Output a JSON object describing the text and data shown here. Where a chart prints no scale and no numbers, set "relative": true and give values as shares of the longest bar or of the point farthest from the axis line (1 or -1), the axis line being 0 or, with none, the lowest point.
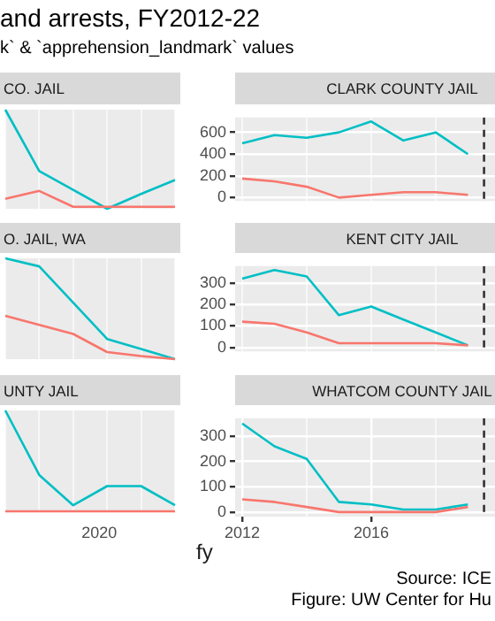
{
  "chart_data": [
    {
      "type": "line",
      "title": "CO. JAIL",
      "annotations": [
        "and arrests, FY2012-22",
        "k` & `apprehension_landmark` values"
      ],
      "relative": true,
      "categories": [
        null,
        null,
        null,
        null,
        null,
        null
      ],
      "grid": true,
      "tick_labels": false,
      "series": [
        {
          "color": "#f8766d",
          "values": [
            0.1,
            0.18,
            0.02,
            0.02,
            0.02,
            0.02
          ]
        },
        {
          "color": "#00bfc4",
          "values": [
            1,
            0.38,
            0.19,
            0,
            0.15,
            0.29
          ]
        }
      ]
    },
    {
      "type": "line",
      "title": "CLARK COUNTY JAIL",
      "xlim": [
        2011.78,
        2019.84
      ],
      "xticks": [
        {
          "value": 2012,
          "label": null
        },
        {
          "value": 2014,
          "label": null
        },
        {
          "value": 2016,
          "label": null
        },
        {
          "value": 2018,
          "label": null
        }
      ],
      "ylim": [
        -31,
        737
      ],
      "yticks": [
        0,
        200,
        400,
        600
      ],
      "grid": true,
      "tick_labels": "y",
      "ref_lines": [
        {
          "axis": "x",
          "value": 2019.5,
          "color": "#333333",
          "line_style": "dashed"
        }
      ],
      "series": [
        {
          "color": "#f8766d",
          "x": [
            2012,
            2013,
            2014,
            2015,
            2016,
            2017,
            2018,
            2019
          ],
          "values": [
            175,
            150,
            100,
            0,
            25,
            50,
            50,
            25
          ]
        },
        {
          "color": "#00bfc4",
          "x": [
            2012,
            2013,
            2014,
            2015,
            2016,
            2017,
            2018,
            2019
          ],
          "values": [
            500,
            575,
            550,
            600,
            700,
            525,
            600,
            400
          ]
        }
      ]
    },
    {
      "type": "line",
      "title": "O. JAIL, WA",
      "relative": true,
      "categories": [
        null,
        null,
        null,
        null,
        null,
        null
      ],
      "grid": true,
      "tick_labels": false,
      "series": [
        {
          "color": "#f8766d",
          "values": [
            0.43,
            0.34,
            0.25,
            0.07,
            0.03,
            0
          ]
        },
        {
          "color": "#00bfc4",
          "values": [
            1,
            0.92,
            0.56,
            0.2,
            0.1,
            0
          ]
        }
      ]
    },
    {
      "type": "line",
      "title": "KENT CITY JAIL",
      "xlim": [
        2011.78,
        2019.84
      ],
      "xticks": [
        {
          "value": 2012,
          "label": null
        },
        {
          "value": 2014,
          "label": null
        },
        {
          "value": 2016,
          "label": null
        },
        {
          "value": 2018,
          "label": null
        }
      ],
      "ylim": [
        -18,
        378
      ],
      "yticks": [
        0,
        100,
        200,
        300
      ],
      "grid": true,
      "tick_labels": "y",
      "ref_lines": [
        {
          "axis": "x",
          "value": 2019.5,
          "color": "#333333",
          "line_style": "dashed"
        }
      ],
      "series": [
        {
          "color": "#f8766d",
          "x": [
            2012,
            2013,
            2014,
            2015,
            2016,
            2017,
            2018,
            2019
          ],
          "values": [
            120,
            110,
            70,
            20,
            20,
            20,
            20,
            10
          ]
        },
        {
          "color": "#00bfc4",
          "x": [
            2012,
            2013,
            2014,
            2015,
            2016,
            2017,
            2018,
            2019
          ],
          "values": [
            320,
            360,
            330,
            150,
            190,
            130,
            70,
            10
          ]
        }
      ]
    },
    {
      "type": "line",
      "title": "UNTY JAIL",
      "xlabel": "fy",
      "annotations": [
        "2020"
      ],
      "relative": true,
      "categories": [
        null,
        null,
        null,
        null,
        null,
        null
      ],
      "grid": true,
      "tick_labels": false,
      "series": [
        {
          "color": "#f8766d",
          "values": [
            0,
            0,
            0,
            0,
            0,
            0
          ]
        },
        {
          "color": "#00bfc4",
          "values": [
            1,
            0.36,
            0.06,
            0.25,
            0.25,
            0.06
          ]
        }
      ]
    },
    {
      "type": "line",
      "title": "WHATCOM COUNTY JAIL",
      "annotations": [
        "Source: ICE",
        "Figure: UW Center for Hu"
      ],
      "xlim": [
        2011.78,
        2019.84
      ],
      "xticks": [
        2012,
        {
          "value": 2014,
          "label": null
        },
        2016,
        {
          "value": 2018,
          "label": null
        }
      ],
      "ylim": [
        -18,
        371
      ],
      "yticks": [
        0,
        100,
        200,
        300
      ],
      "grid": true,
      "ref_lines": [
        {
          "axis": "x",
          "value": 2019.5,
          "color": "#333333",
          "line_style": "dashed"
        }
      ],
      "series": [
        {
          "color": "#f8766d",
          "x": [
            2012,
            2013,
            2014,
            2015,
            2016,
            2017,
            2018,
            2019
          ],
          "values": [
            50,
            40,
            20,
            0,
            0,
            0,
            0,
            20
          ]
        },
        {
          "color": "#00bfc4",
          "x": [
            2012,
            2013,
            2014,
            2015,
            2016,
            2017,
            2018,
            2019
          ],
          "values": [
            350,
            260,
            210,
            40,
            30,
            10,
            10,
            30
          ]
        }
      ]
    }
  ]
}
